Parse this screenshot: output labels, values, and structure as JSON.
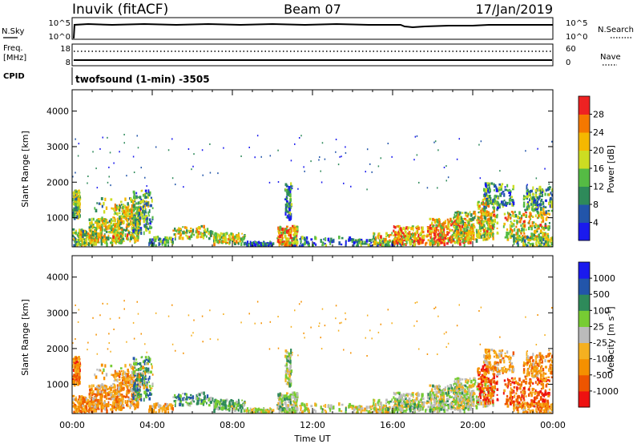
{
  "header": {
    "station": "Inuvik (fitACF)",
    "beam": "Beam 07",
    "date": "17/Jan/2019"
  },
  "nsky_panel": {
    "left_label": "N.Sky",
    "left_top_tick": "10^5",
    "left_bottom_tick": "10^0",
    "right_label": "N.Search",
    "right_top_tick": "10^5",
    "right_bottom_tick": "10^0"
  },
  "freq_panel": {
    "left_label_line1": "Freq.",
    "left_label_line2": "[MHz]",
    "left_top_tick": "18",
    "left_bottom_tick": "8",
    "right_label": "Nave",
    "right_top_tick": "60",
    "right_bottom_tick": "0"
  },
  "cpid_panel": {
    "label": "CPID",
    "text": "twofsound (1-min) -3505"
  },
  "colors": {
    "power_scale": [
      "#1a1aee",
      "#2255aa",
      "#2e8a5a",
      "#55bb44",
      "#ccdd22",
      "#f5b800",
      "#f57800",
      "#ee2222"
    ],
    "velocity_scale": [
      "#ee1111",
      "#ee5500",
      "#f59000",
      "#f5b020",
      "#bbbbbb",
      "#77cc33",
      "#2e8a5a",
      "#2255aa",
      "#1a1aee"
    ]
  },
  "chart_data": [
    {
      "type": "heatmap",
      "quantity": "power",
      "ylabel": "Slant Range [km]",
      "ylim": [
        180,
        4600
      ],
      "yticks": [
        "1000",
        "2000",
        "3000",
        "4000"
      ],
      "xlim_hours": [
        0,
        24
      ],
      "colorbar_label": "Power [dB]",
      "colorbar_ticks": [
        "4",
        "8",
        "12",
        "16",
        "20",
        "24",
        "28"
      ],
      "colorbar_range": [
        0,
        32
      ]
    },
    {
      "type": "heatmap",
      "quantity": "velocity",
      "ylabel": "Slant Range [km]",
      "ylim": [
        180,
        4600
      ],
      "yticks": [
        "1000",
        "2000",
        "3000",
        "4000"
      ],
      "xlim_hours": [
        0,
        24
      ],
      "xlabel": "Time UT",
      "xticks": [
        "00:00",
        "04:00",
        "08:00",
        "12:00",
        "16:00",
        "20:00",
        "00:00"
      ],
      "colorbar_label": "Velocity [m s^-1]",
      "colorbar_ticks": [
        "-1000",
        "-500",
        "-100",
        "-25",
        "25",
        "100",
        "500",
        "1000"
      ]
    }
  ]
}
